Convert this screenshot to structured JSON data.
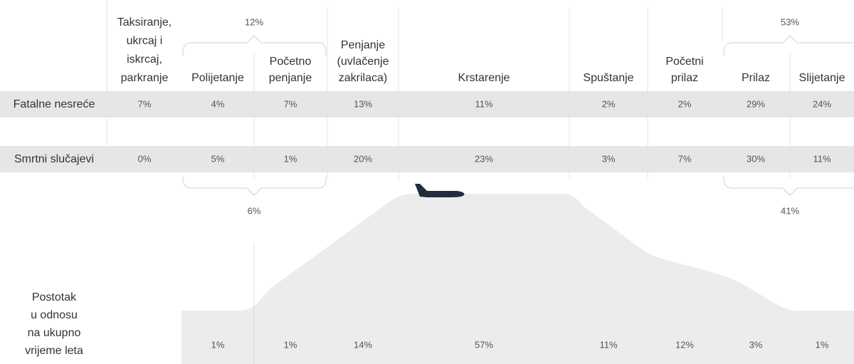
{
  "row_labels": {
    "fatal": "Fatalne nesreće",
    "deaths": "Smrtni slučajevi",
    "time": [
      "Postotak",
      "u odnosu",
      "na ukupno",
      "vrijeme leta"
    ]
  },
  "phases": [
    {
      "name": [
        "Taksiranje,",
        "ukrcaj i",
        "iskrcaj,",
        "parkranje"
      ],
      "fatal": "7%",
      "deaths": "0%"
    },
    {
      "name": [
        "Polijetanje"
      ],
      "fatal": "4%",
      "deaths": "5%",
      "time": "1%"
    },
    {
      "name": [
        "Početno",
        "penjanje"
      ],
      "fatal": "7%",
      "deaths": "1%",
      "time": "1%"
    },
    {
      "name": [
        "Penjanje",
        "(uvlačenje",
        "zakrilaca)"
      ],
      "fatal": "13%",
      "deaths": "20%",
      "time": "14%"
    },
    {
      "name": [
        "Krstarenje"
      ],
      "fatal": "11%",
      "deaths": "23%",
      "time": "57%"
    },
    {
      "name": [
        "Spuštanje"
      ],
      "fatal": "2%",
      "deaths": "3%",
      "time": "11%"
    },
    {
      "name": [
        "Početni",
        "prilaz"
      ],
      "fatal": "2%",
      "deaths": "7%",
      "time": "12%"
    },
    {
      "name": [
        "Prilaz"
      ],
      "fatal": "29%",
      "deaths": "30%",
      "time": "3%"
    },
    {
      "name": [
        "Slijetanje"
      ],
      "fatal": "24%",
      "deaths": "11%",
      "time": "1%"
    }
  ],
  "groups": [
    {
      "top": "12%",
      "bottom": "6%"
    },
    {
      "top": "53%",
      "bottom": "41%"
    }
  ]
}
